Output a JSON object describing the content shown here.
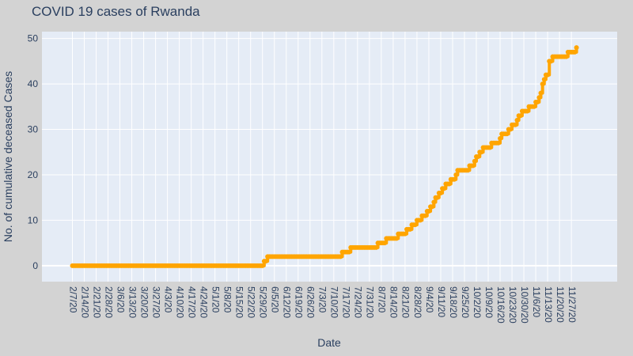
{
  "chart_data": {
    "type": "line",
    "title": "COVID 19 cases of Rwanda",
    "xlabel": "Date",
    "ylabel": "No. of cumulative deceased Cases",
    "ylim": [
      -3.5,
      51.5
    ],
    "y_ticks": [
      0,
      10,
      20,
      30,
      40,
      50
    ],
    "x_ticks": [
      "2/7/20",
      "2/14/20",
      "2/21/20",
      "2/28/20",
      "3/6/20",
      "3/13/20",
      "3/20/20",
      "3/27/20",
      "4/3/20",
      "4/10/20",
      "4/17/20",
      "4/24/20",
      "5/1/20",
      "5/8/20",
      "5/15/20",
      "5/22/20",
      "5/29/20",
      "6/5/20",
      "6/12/20",
      "6/19/20",
      "6/26/20",
      "7/3/20",
      "7/10/20",
      "7/17/20",
      "7/24/20",
      "7/31/20",
      "8/7/20",
      "8/14/20",
      "8/21/20",
      "8/28/20",
      "9/4/20",
      "9/11/20",
      "9/18/20",
      "9/25/20",
      "10/2/20",
      "10/9/20",
      "10/16/20",
      "10/23/20",
      "10/30/20",
      "11/6/20",
      "11/13/20",
      "11/20/20",
      "11/27/20"
    ],
    "grid": true,
    "series": [
      {
        "color": "#ffa500",
        "x": [
          "2020-02-07",
          "2020-05-30",
          "2020-06-01",
          "2020-06-30",
          "2020-07-15",
          "2020-07-20",
          "2020-08-05",
          "2020-08-07",
          "2020-08-10",
          "2020-08-17",
          "2020-08-20",
          "2020-08-22",
          "2020-08-23",
          "2020-08-24",
          "2020-08-25",
          "2020-08-28",
          "2020-08-31",
          "2020-09-03",
          "2020-09-05",
          "2020-09-07",
          "2020-09-08",
          "2020-09-10",
          "2020-09-12",
          "2020-09-14",
          "2020-09-15",
          "2020-09-17",
          "2020-09-20",
          "2020-09-21",
          "2020-09-28",
          "2020-09-29",
          "2020-10-01",
          "2020-10-02",
          "2020-10-04",
          "2020-10-06",
          "2020-10-11",
          "2020-10-16",
          "2020-10-17",
          "2020-10-18",
          "2020-10-19",
          "2020-10-20",
          "2020-10-21",
          "2020-10-22",
          "2020-10-23",
          "2020-10-24",
          "2020-10-26",
          "2020-10-27",
          "2020-10-28",
          "2020-10-29",
          "2020-10-30",
          "2020-10-31",
          "2020-11-02",
          "2020-11-03",
          "2020-11-04",
          "2020-11-05",
          "2020-11-06",
          "2020-11-07",
          "2020-11-08",
          "2020-11-09",
          "2020-11-10",
          "2020-11-11",
          "2020-11-12",
          "2020-11-14",
          "2020-11-16",
          "2020-11-20",
          "2020-11-23",
          "2020-11-24",
          "2020-11-25",
          "2020-11-27",
          "2020-11-30"
        ],
        "y": [
          0,
          1,
          2,
          2,
          3,
          4,
          5,
          5,
          6,
          7,
          7,
          8,
          8,
          8,
          9,
          10,
          11,
          12,
          13,
          14,
          15,
          16,
          17,
          18,
          18,
          19,
          20,
          21,
          22,
          22,
          23,
          24,
          25,
          26,
          27,
          28,
          29,
          29,
          29,
          29,
          30,
          30,
          31,
          31,
          32,
          33,
          33,
          34,
          34,
          34,
          35,
          35,
          35,
          35,
          36,
          36,
          37,
          38,
          40,
          41,
          42,
          45,
          46,
          46,
          46,
          46,
          47,
          47,
          48
        ]
      }
    ]
  }
}
